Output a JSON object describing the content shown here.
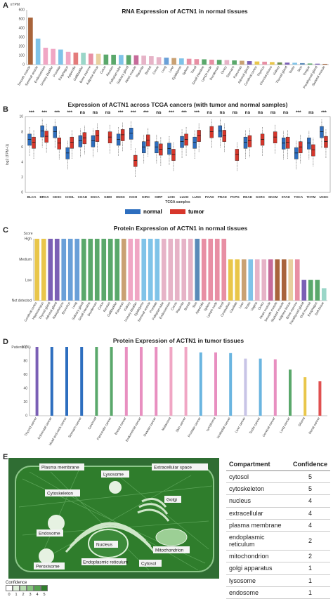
{
  "panels": {
    "A": {
      "label": "A"
    },
    "B": {
      "label": "B"
    },
    "C": {
      "label": "C"
    },
    "D": {
      "label": "D"
    },
    "E": {
      "label": "E"
    }
  },
  "chart_data": [
    {
      "id": "A",
      "type": "bar",
      "title": "RNA Expression of ACTN1 in normal tissues",
      "ylabel": "nTPM",
      "ylim": [
        0,
        600
      ],
      "yticks": [
        0,
        100,
        200,
        300,
        400,
        500,
        600
      ],
      "categories": [
        "Smooth muscle",
        "Seminal vesicle",
        "Endometrium",
        "Urinary bladder",
        "Prostate",
        "Esophagus",
        "Appendix",
        "Gallbladder",
        "Bone marrow",
        "Adipose tissue",
        "Colon",
        "Rectum",
        "Fallopian tube",
        "Salivary gland",
        "Heart muscle",
        "Placenta",
        "Breast",
        "Cervix",
        "Lung",
        "Liver",
        "Epididymis",
        "Spleen",
        "Tonsil",
        "Small intestine",
        "Lymph node",
        "Duodenum",
        "Ovary",
        "Stomach",
        "Pancreas",
        "Adrenal gland",
        "Cerebral cortex",
        "Thymus",
        "Choroid plexus",
        "Kidney",
        "Thyroid gland",
        "Testis",
        "Skin",
        "Tongue",
        "Parathyroid gland",
        "Skeletal muscle"
      ],
      "values": [
        515,
        285,
        185,
        172,
        165,
        140,
        132,
        130,
        120,
        118,
        110,
        108,
        106,
        104,
        102,
        98,
        92,
        82,
        76,
        72,
        68,
        64,
        60,
        58,
        54,
        52,
        50,
        46,
        42,
        38,
        34,
        32,
        28,
        24,
        22,
        20,
        16,
        12,
        10,
        8
      ],
      "colors": [
        "#a8643b",
        "#7fc3e8",
        "#f0a6c4",
        "#f0a6c4",
        "#7fc3e8",
        "#f0a6c4",
        "#e47b7b",
        "#9ad6c8",
        "#e88fa4",
        "#e8d09f",
        "#5aa86b",
        "#5aa86b",
        "#7fc3e8",
        "#5aa86b",
        "#c66b9a",
        "#e6b3c7",
        "#e6b3c7",
        "#e6b3c7",
        "#6aa0d8",
        "#c9a173",
        "#7fc3e8",
        "#e88fa4",
        "#e88fa4",
        "#5aa86b",
        "#e88fa4",
        "#5aa86b",
        "#e6b3c7",
        "#5aa86b",
        "#c9a173",
        "#7a5fb5",
        "#e9c64a",
        "#e88fa4",
        "#e9c64a",
        "#6a8c4f",
        "#7a5fb5",
        "#7fc3e8",
        "#5a8ab8",
        "#5aa86b",
        "#7a5fb5",
        "#a8643b"
      ]
    },
    {
      "id": "B",
      "type": "box",
      "title": "Expression of ACTN1 across TCGA cancers (with tumor and normal samples)",
      "ylabel": "log2 (TPM+1)",
      "xlabel": "TCGA samples",
      "ylim": [
        0,
        10
      ],
      "yticks": [
        0,
        2,
        4,
        6,
        8,
        10
      ],
      "legend": [
        {
          "name": "normal",
          "color": "#2d6ebf"
        },
        {
          "name": "tumor",
          "color": "#d7362b"
        }
      ],
      "categories": [
        "BLCA",
        "BRCA",
        "CESC",
        "CHOL",
        "COAD",
        "ESCA",
        "GBM",
        "HNSC",
        "KICH",
        "KIRC",
        "KIRP",
        "LIHC",
        "LUAD",
        "LUSC",
        "PAAD",
        "PRAD",
        "PCPG",
        "READ",
        "SARC",
        "SKCM",
        "STAD",
        "THCA",
        "THYM",
        "UCEC"
      ],
      "category_colors": [
        "#d7362b",
        "#d7362b",
        "#d7362b",
        "#d7362b",
        "#333333",
        "#222222",
        "#222222",
        "#d7362b",
        "#d7362b",
        "#d7362b",
        "#333333",
        "#d7362b",
        "#d7362b",
        "#d7362b",
        "#333333",
        "#d7362b",
        "#333333",
        "#333333",
        "#333333",
        "#333333",
        "#333333",
        "#d7362b",
        "#333333",
        "#d7362b"
      ],
      "significance": [
        "***",
        "***",
        "***",
        "***",
        "ns",
        "ns",
        "ns",
        "***",
        "***",
        "***",
        "ns",
        "***",
        "***",
        "***",
        "ns",
        "ns",
        "ns",
        "ns",
        "ns",
        "ns",
        "ns",
        "***",
        "ns",
        "***"
      ],
      "normal_median": [
        7.0,
        8.1,
        8.0,
        5.2,
        6.8,
        6.8,
        null,
        7.0,
        7.8,
        6.0,
        6.0,
        5.8,
        6.7,
        6.6,
        null,
        8.1,
        null,
        6.6,
        null,
        null,
        6.5,
        5.2,
        6.5,
        8.0
      ],
      "tumor_median": [
        6.6,
        7.4,
        6.5,
        6.6,
        7.2,
        7.5,
        7.3,
        7.6,
        4.2,
        6.9,
        5.7,
        5.0,
        7.0,
        7.5,
        8.0,
        7.5,
        5.0,
        6.8,
        7.0,
        7.3,
        6.6,
        6.0,
        5.6,
        6.7
      ]
    },
    {
      "id": "C",
      "type": "bar",
      "title": "Protein Expression of ACTN1 in normal tissues",
      "ylabel": "Score",
      "ylevels": [
        "Not detected",
        "Low",
        "Medium",
        "High"
      ],
      "categories": [
        "Cerebral cortex",
        "Hippocampus",
        "Thyroid gland",
        "Adrenal gland",
        "Nasopharynx",
        "Bronchus",
        "Lung",
        "Salivary gland",
        "Small intestine",
        "Duodenum",
        "Colon",
        "Rectum",
        "Gallbladder",
        "Pancreas",
        "Kidney",
        "Urinary bladder",
        "Epididymis",
        "Seminal vesicle",
        "Prostate",
        "Fallopian tube",
        "Endometrium",
        "Cervix",
        "Placenta",
        "Breast",
        "Skin",
        "Appendix",
        "Spleen",
        "Lymph node",
        "Tonsil",
        "Cerebellum",
        "Caudate",
        "Liver",
        "Testis",
        "Vagina",
        "Ovary",
        "Heart muscle",
        "Smooth muscle",
        "Skeletal muscle",
        "Adipose tissue",
        "Bone marrow",
        "Parathyroid gland",
        "Oral mucosa",
        "Esophagus",
        "Soft tissue"
      ],
      "values": [
        3,
        3,
        3,
        3,
        3,
        3,
        3,
        3,
        3,
        3,
        3,
        3,
        3,
        3,
        3,
        3,
        3,
        3,
        3,
        3,
        3,
        3,
        3,
        3,
        3,
        3,
        3,
        3,
        3,
        2,
        2,
        2,
        2,
        2,
        2,
        2,
        2,
        2,
        2,
        2,
        1,
        1,
        1,
        0.6
      ],
      "colors": [
        "#e9c64a",
        "#e9c64a",
        "#7a5fb5",
        "#7a5fb5",
        "#6aa0d8",
        "#6aa0d8",
        "#6aa0d8",
        "#5aa86b",
        "#5aa86b",
        "#5aa86b",
        "#5aa86b",
        "#5aa86b",
        "#5aa86b",
        "#c9a173",
        "#f0a6c4",
        "#f0a6c4",
        "#7fc3e8",
        "#7fc3e8",
        "#7fc3e8",
        "#e6b3c7",
        "#e6b3c7",
        "#e6b3c7",
        "#e6b3c7",
        "#e6b3c7",
        "#5a8ab8",
        "#e88fa4",
        "#e88fa4",
        "#e88fa4",
        "#e88fa4",
        "#e9c64a",
        "#e9c64a",
        "#c9a173",
        "#7fc3e8",
        "#e6b3c7",
        "#e6b3c7",
        "#c66b9a",
        "#a8643b",
        "#a8643b",
        "#e8d09f",
        "#e88fa4",
        "#7a5fb5",
        "#5aa86b",
        "#5aa86b",
        "#9ad6c8"
      ]
    },
    {
      "id": "D",
      "type": "bar",
      "title": "Protein Expression of ACTN1 in tumor tissues",
      "ylabel": "Patients (%)",
      "ylim": [
        0,
        100
      ],
      "yticks": [
        0,
        20,
        40,
        60,
        80,
        100
      ],
      "categories": [
        "Thyroid cancer",
        "Colorectal cancer",
        "Head and neck cancer",
        "Stomach cancer",
        "Carcinoid",
        "Pancreatic cancer",
        "Breast cancer",
        "Endometrial cancer",
        "Ovarian cancer",
        "Melanoma",
        "Skin cancer",
        "Prostate cancer",
        "Lymphoma",
        "Urothelial cancer",
        "Liver cancer",
        "Testis cancer",
        "Cervical cancer",
        "Lung cancer",
        "Glioma",
        "Renal cancer"
      ],
      "values": [
        100,
        100,
        100,
        100,
        100,
        100,
        100,
        100,
        100,
        100,
        100,
        92,
        92,
        91,
        83,
        83,
        82,
        67,
        56,
        50
      ],
      "colors": [
        "#7a5fb5",
        "#2d6ebf",
        "#2d6ebf",
        "#2d6ebf",
        "#5aa86b",
        "#5aa86b",
        "#e88fc0",
        "#e88fc0",
        "#e88fc0",
        "#f0a6c4",
        "#f0a6c4",
        "#6ab5e0",
        "#e88fc0",
        "#6ab5e0",
        "#c8c4e6",
        "#6ab5e0",
        "#e88fc0",
        "#5aa86b",
        "#e9c64a",
        "#e05050"
      ]
    }
  ],
  "cell": {
    "labels": {
      "plasma_membrane": "Plasma membrane",
      "lysosome": "Lysosome",
      "extracellular": "Extracellular space",
      "cytoskeleton": "Cytoskeleton",
      "golgi": "Golgi",
      "endosome": "Endosome",
      "nucleus": "Nucleus",
      "mitochondrion": "Mitochondrion",
      "peroxisome": "Peroxisome",
      "er": "Endoplasmic reticulum",
      "cytosol": "Cytosol"
    },
    "legend_title": "Confidence",
    "legend_values": [
      "0",
      "1",
      "2",
      "3",
      "4",
      "5"
    ],
    "legend_colors": [
      "#ffffff",
      "#dff0da",
      "#b6dcae",
      "#86c47d",
      "#55a34e",
      "#2f7d2c"
    ]
  },
  "table": {
    "headers": [
      "Compartment",
      "Confidence"
    ],
    "rows": [
      {
        "compartment": "cytosol",
        "confidence": "5"
      },
      {
        "compartment": "cytoskeleton",
        "confidence": "5"
      },
      {
        "compartment": "nucleus",
        "confidence": "4"
      },
      {
        "compartment": "extracellular",
        "confidence": "4"
      },
      {
        "compartment": "plasma membrane",
        "confidence": "4"
      },
      {
        "compartment": "endoplasmic reticulum",
        "confidence": "2"
      },
      {
        "compartment": "mitochondrion",
        "confidence": "2"
      },
      {
        "compartment": "golgi apparatus",
        "confidence": "1"
      },
      {
        "compartment": "lysosome",
        "confidence": "1"
      },
      {
        "compartment": "endosome",
        "confidence": "1"
      }
    ]
  }
}
